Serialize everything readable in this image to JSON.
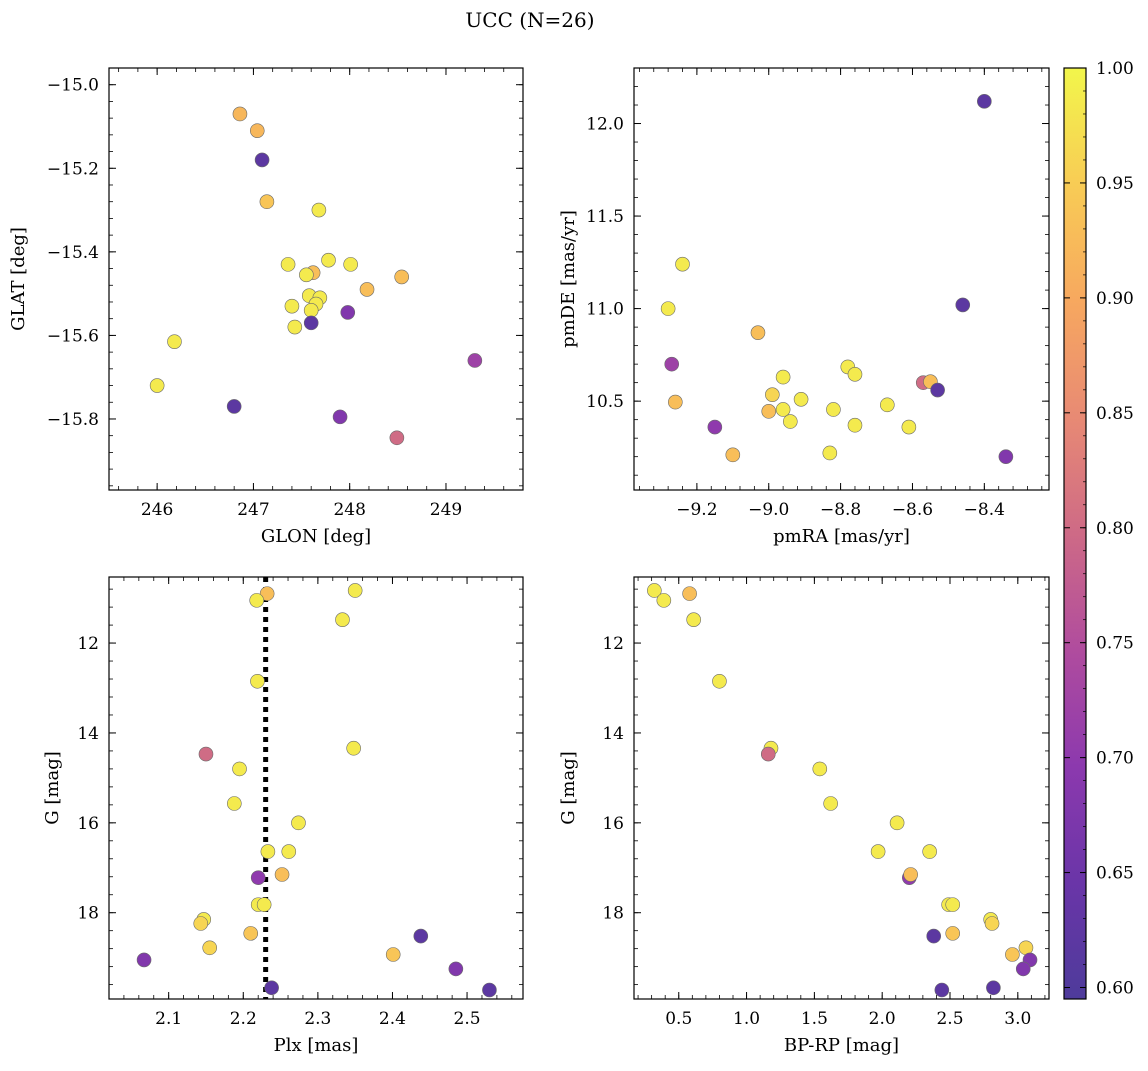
{
  "figure": {
    "title": "UCC (N=26)"
  },
  "chart_data": [
    {
      "id": "sky",
      "type": "scatter",
      "xlabel": "GLON [deg]",
      "ylabel": "GLAT [deg]",
      "xlim": [
        245.5,
        249.8
      ],
      "ylim": [
        -15.97,
        -14.96
      ],
      "xticks": [
        246,
        247,
        248,
        249
      ],
      "yticks": [
        -15.0,
        -15.2,
        -15.4,
        -15.6,
        -15.8
      ],
      "ytick_labels": [
        "−15.0",
        "−15.2",
        "−15.4",
        "−15.6",
        "−15.8"
      ],
      "points": [
        {
          "x": 246.86,
          "y": -15.07,
          "c": 0.92
        },
        {
          "x": 247.04,
          "y": -15.11,
          "c": 0.92
        },
        {
          "x": 247.09,
          "y": -15.18,
          "c": 0.62
        },
        {
          "x": 247.14,
          "y": -15.28,
          "c": 0.94
        },
        {
          "x": 247.68,
          "y": -15.3,
          "c": 0.985
        },
        {
          "x": 247.36,
          "y": -15.43,
          "c": 0.985
        },
        {
          "x": 247.78,
          "y": -15.42,
          "c": 0.985
        },
        {
          "x": 247.62,
          "y": -15.45,
          "c": 0.93
        },
        {
          "x": 247.55,
          "y": -15.455,
          "c": 0.985
        },
        {
          "x": 248.01,
          "y": -15.43,
          "c": 0.985
        },
        {
          "x": 248.18,
          "y": -15.49,
          "c": 0.93
        },
        {
          "x": 248.54,
          "y": -15.46,
          "c": 0.93
        },
        {
          "x": 247.58,
          "y": -15.505,
          "c": 0.985
        },
        {
          "x": 247.69,
          "y": -15.51,
          "c": 0.985
        },
        {
          "x": 247.65,
          "y": -15.525,
          "c": 0.985
        },
        {
          "x": 247.4,
          "y": -15.53,
          "c": 0.985
        },
        {
          "x": 247.6,
          "y": -15.54,
          "c": 0.985
        },
        {
          "x": 247.98,
          "y": -15.545,
          "c": 0.68
        },
        {
          "x": 247.6,
          "y": -15.57,
          "c": 0.62
        },
        {
          "x": 247.43,
          "y": -15.58,
          "c": 0.985
        },
        {
          "x": 246.18,
          "y": -15.615,
          "c": 0.985
        },
        {
          "x": 249.3,
          "y": -15.66,
          "c": 0.72
        },
        {
          "x": 246.0,
          "y": -15.72,
          "c": 0.985
        },
        {
          "x": 246.8,
          "y": -15.77,
          "c": 0.62
        },
        {
          "x": 247.9,
          "y": -15.795,
          "c": 0.68
        },
        {
          "x": 248.49,
          "y": -15.845,
          "c": 0.8
        }
      ]
    },
    {
      "id": "pm",
      "type": "scatter",
      "xlabel": "pmRA [mas/yr]",
      "ylabel": "pmDE [mas/yr]",
      "xlim": [
        -9.375,
        -8.22
      ],
      "ylim": [
        10.02,
        12.3
      ],
      "xticks": [
        -9.2,
        -9.0,
        -8.8,
        -8.6,
        -8.4
      ],
      "xtick_labels": [
        "−9.2",
        "−9.0",
        "−8.8",
        "−8.6",
        "−8.4"
      ],
      "yticks": [
        10.5,
        11.0,
        11.5,
        12.0
      ],
      "ytick_labels": [
        "10.5",
        "11.0",
        "11.5",
        "12.0"
      ],
      "points": [
        {
          "x": -8.4,
          "y": 12.12,
          "c": 0.62
        },
        {
          "x": -9.24,
          "y": 11.24,
          "c": 0.985
        },
        {
          "x": -8.46,
          "y": 11.02,
          "c": 0.62
        },
        {
          "x": -9.28,
          "y": 11.0,
          "c": 0.985
        },
        {
          "x": -9.03,
          "y": 10.87,
          "c": 0.93
        },
        {
          "x": -9.27,
          "y": 10.7,
          "c": 0.72
        },
        {
          "x": -8.78,
          "y": 10.685,
          "c": 0.985
        },
        {
          "x": -8.76,
          "y": 10.645,
          "c": 0.985
        },
        {
          "x": -8.96,
          "y": 10.63,
          "c": 0.985
        },
        {
          "x": -8.57,
          "y": 10.6,
          "c": 0.8
        },
        {
          "x": -8.55,
          "y": 10.605,
          "c": 0.93
        },
        {
          "x": -8.53,
          "y": 10.56,
          "c": 0.62
        },
        {
          "x": -8.99,
          "y": 10.535,
          "c": 0.96
        },
        {
          "x": -8.91,
          "y": 10.51,
          "c": 0.985
        },
        {
          "x": -9.26,
          "y": 10.495,
          "c": 0.93
        },
        {
          "x": -8.67,
          "y": 10.48,
          "c": 0.985
        },
        {
          "x": -8.96,
          "y": 10.455,
          "c": 0.985
        },
        {
          "x": -8.82,
          "y": 10.455,
          "c": 0.985
        },
        {
          "x": -9.0,
          "y": 10.445,
          "c": 0.93
        },
        {
          "x": -8.94,
          "y": 10.39,
          "c": 0.985
        },
        {
          "x": -9.15,
          "y": 10.36,
          "c": 0.7
        },
        {
          "x": -8.76,
          "y": 10.37,
          "c": 0.985
        },
        {
          "x": -8.61,
          "y": 10.36,
          "c": 0.985
        },
        {
          "x": -8.83,
          "y": 10.22,
          "c": 0.985
        },
        {
          "x": -9.1,
          "y": 10.21,
          "c": 0.93
        },
        {
          "x": -8.34,
          "y": 10.2,
          "c": 0.68
        }
      ]
    },
    {
      "id": "plx",
      "type": "scatter",
      "xlabel": "Plx [mas]",
      "ylabel": "G [mag]",
      "xlim": [
        2.02,
        2.575
      ],
      "ylim": [
        19.92,
        10.53
      ],
      "xticks": [
        2.1,
        2.2,
        2.3,
        2.4,
        2.5
      ],
      "xtick_labels": [
        "2.1",
        "2.2",
        "2.3",
        "2.4",
        "2.5"
      ],
      "yticks": [
        12,
        14,
        16,
        18
      ],
      "ytick_labels": [
        "12",
        "14",
        "16",
        "18"
      ],
      "vline": 2.23,
      "points": [
        {
          "x": 2.232,
          "y": 10.9,
          "c": 0.93
        },
        {
          "x": 2.218,
          "y": 11.05,
          "c": 0.985
        },
        {
          "x": 2.35,
          "y": 10.83,
          "c": 0.985
        },
        {
          "x": 2.333,
          "y": 11.48,
          "c": 0.985
        },
        {
          "x": 2.219,
          "y": 12.85,
          "c": 0.985
        },
        {
          "x": 2.348,
          "y": 14.34,
          "c": 0.985
        },
        {
          "x": 2.15,
          "y": 14.47,
          "c": 0.8
        },
        {
          "x": 2.195,
          "y": 14.8,
          "c": 0.985
        },
        {
          "x": 2.188,
          "y": 15.57,
          "c": 0.985
        },
        {
          "x": 2.274,
          "y": 16.0,
          "c": 0.985
        },
        {
          "x": 2.233,
          "y": 16.64,
          "c": 0.985
        },
        {
          "x": 2.261,
          "y": 16.64,
          "c": 0.985
        },
        {
          "x": 2.252,
          "y": 17.15,
          "c": 0.93
        },
        {
          "x": 2.22,
          "y": 17.22,
          "c": 0.7
        },
        {
          "x": 2.22,
          "y": 17.82,
          "c": 0.985
        },
        {
          "x": 2.228,
          "y": 17.82,
          "c": 0.985
        },
        {
          "x": 2.147,
          "y": 18.15,
          "c": 0.985
        },
        {
          "x": 2.143,
          "y": 18.24,
          "c": 0.96
        },
        {
          "x": 2.21,
          "y": 18.46,
          "c": 0.94
        },
        {
          "x": 2.438,
          "y": 18.52,
          "c": 0.62
        },
        {
          "x": 2.155,
          "y": 18.78,
          "c": 0.96
        },
        {
          "x": 2.401,
          "y": 18.93,
          "c": 0.94
        },
        {
          "x": 2.067,
          "y": 19.05,
          "c": 0.68
        },
        {
          "x": 2.485,
          "y": 19.25,
          "c": 0.68
        },
        {
          "x": 2.238,
          "y": 19.67,
          "c": 0.62
        },
        {
          "x": 2.53,
          "y": 19.72,
          "c": 0.62
        }
      ]
    },
    {
      "id": "cmd",
      "type": "scatter",
      "xlabel": "BP-RP [mag]",
      "ylabel": "G [mag]",
      "xlim": [
        0.17,
        3.23
      ],
      "ylim": [
        19.92,
        10.53
      ],
      "xticks": [
        0.5,
        1.0,
        1.5,
        2.0,
        2.5,
        3.0
      ],
      "xtick_labels": [
        "0.5",
        "1.0",
        "1.5",
        "2.0",
        "2.5",
        "3.0"
      ],
      "yticks": [
        12,
        14,
        16,
        18
      ],
      "ytick_labels": [
        "12",
        "14",
        "16",
        "18"
      ],
      "points": [
        {
          "x": 0.32,
          "y": 10.83,
          "c": 0.985
        },
        {
          "x": 0.39,
          "y": 11.05,
          "c": 0.985
        },
        {
          "x": 0.58,
          "y": 10.9,
          "c": 0.93
        },
        {
          "x": 0.61,
          "y": 11.48,
          "c": 0.985
        },
        {
          "x": 0.8,
          "y": 12.85,
          "c": 0.985
        },
        {
          "x": 1.18,
          "y": 14.34,
          "c": 0.985
        },
        {
          "x": 1.16,
          "y": 14.47,
          "c": 0.8
        },
        {
          "x": 1.54,
          "y": 14.8,
          "c": 0.985
        },
        {
          "x": 1.62,
          "y": 15.57,
          "c": 0.985
        },
        {
          "x": 2.11,
          "y": 16.0,
          "c": 0.985
        },
        {
          "x": 1.97,
          "y": 16.64,
          "c": 0.985
        },
        {
          "x": 2.35,
          "y": 16.64,
          "c": 0.985
        },
        {
          "x": 2.2,
          "y": 17.22,
          "c": 0.7
        },
        {
          "x": 2.21,
          "y": 17.15,
          "c": 0.93
        },
        {
          "x": 2.49,
          "y": 17.82,
          "c": 0.985
        },
        {
          "x": 2.52,
          "y": 17.82,
          "c": 0.985
        },
        {
          "x": 2.8,
          "y": 18.15,
          "c": 0.985
        },
        {
          "x": 2.81,
          "y": 18.24,
          "c": 0.96
        },
        {
          "x": 2.52,
          "y": 18.46,
          "c": 0.94
        },
        {
          "x": 2.38,
          "y": 18.52,
          "c": 0.62
        },
        {
          "x": 3.06,
          "y": 18.78,
          "c": 0.96
        },
        {
          "x": 2.96,
          "y": 18.93,
          "c": 0.94
        },
        {
          "x": 3.09,
          "y": 19.05,
          "c": 0.68
        },
        {
          "x": 3.04,
          "y": 19.25,
          "c": 0.68
        },
        {
          "x": 2.82,
          "y": 19.67,
          "c": 0.62
        },
        {
          "x": 2.44,
          "y": 19.72,
          "c": 0.62
        }
      ]
    }
  ],
  "colorbar": {
    "colormap": "plasma",
    "range": [
      0.595,
      1.0
    ],
    "ticks": [
      0.6,
      0.65,
      0.7,
      0.75,
      0.8,
      0.85,
      0.9,
      0.95,
      1.0
    ],
    "tick_labels": [
      "0.60",
      "0.65",
      "0.70",
      "0.75",
      "0.80",
      "0.85",
      "0.90",
      "0.95",
      "1.00"
    ]
  }
}
